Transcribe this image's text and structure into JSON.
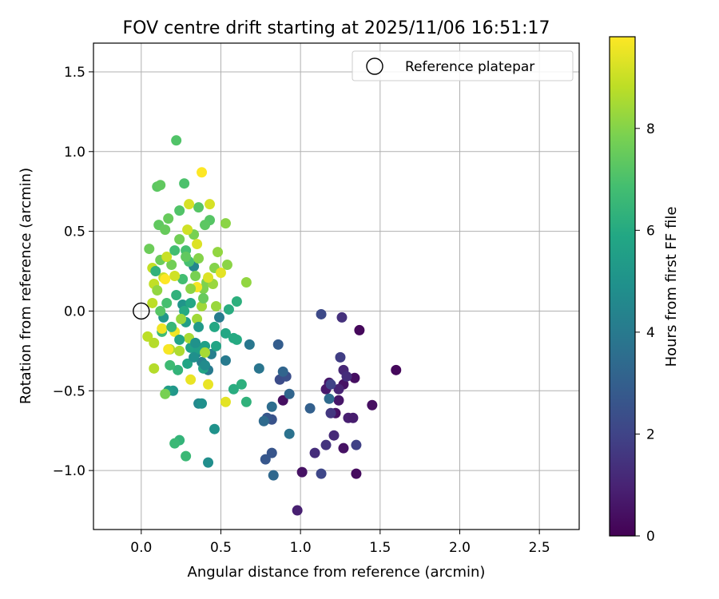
{
  "chart_data": {
    "type": "scatter",
    "title": "FOV centre drift starting at 2025/11/06 16:51:17",
    "xlabel": "Angular distance from reference (arcmin)",
    "ylabel": "Rotation from reference (arcmin)",
    "xlim": [
      -0.3,
      2.75
    ],
    "ylim": [
      -1.37,
      1.68
    ],
    "xticks": [
      0.0,
      0.5,
      1.0,
      1.5,
      2.0,
      2.5
    ],
    "xtick_labels": [
      "0.0",
      "0.5",
      "1.0",
      "1.5",
      "2.0",
      "2.5"
    ],
    "yticks": [
      -1.0,
      -0.5,
      0.0,
      0.5,
      1.0,
      1.5
    ],
    "ytick_labels": [
      "−1.0",
      "−0.5",
      "0.0",
      "0.5",
      "1.0",
      "1.5"
    ],
    "grid": true,
    "legend": {
      "placement": "top-right",
      "entries": [
        "Reference platepar"
      ]
    },
    "reference_point": {
      "x": 0.0,
      "y": 0.0,
      "marker": "open-circle"
    },
    "colorbar": {
      "label": "Hours from first FF file",
      "colormap": "viridis",
      "range": [
        0,
        9.8
      ],
      "ticks": [
        0,
        2,
        4,
        6,
        8
      ],
      "tick_labels": [
        "0",
        "2",
        "4",
        "6",
        "8"
      ]
    },
    "points": [
      {
        "x": 1.37,
        "y": -0.12,
        "h": 0.2
      },
      {
        "x": 1.6,
        "y": -0.37,
        "h": 0.2
      },
      {
        "x": 1.45,
        "y": -0.59,
        "h": 0.4
      },
      {
        "x": 1.35,
        "y": -1.02,
        "h": 0.3
      },
      {
        "x": 1.27,
        "y": -0.86,
        "h": 0.5
      },
      {
        "x": 1.22,
        "y": -0.64,
        "h": 0.5
      },
      {
        "x": 1.24,
        "y": -0.56,
        "h": 0.6
      },
      {
        "x": 1.27,
        "y": -0.46,
        "h": 0.5
      },
      {
        "x": 1.34,
        "y": -0.42,
        "h": 0.4
      },
      {
        "x": 1.16,
        "y": -0.49,
        "h": 0.7
      },
      {
        "x": 1.18,
        "y": -0.45,
        "h": 0.6
      },
      {
        "x": 1.01,
        "y": -1.01,
        "h": 0.5
      },
      {
        "x": 0.89,
        "y": -0.56,
        "h": 0.4
      },
      {
        "x": 0.98,
        "y": -1.25,
        "h": 0.9
      },
      {
        "x": 1.24,
        "y": -0.49,
        "h": 1.0
      },
      {
        "x": 1.3,
        "y": -0.67,
        "h": 0.9
      },
      {
        "x": 1.33,
        "y": -0.67,
        "h": 0.8
      },
      {
        "x": 1.27,
        "y": -0.37,
        "h": 1.1
      },
      {
        "x": 1.29,
        "y": -0.41,
        "h": 1.3
      },
      {
        "x": 1.21,
        "y": -0.78,
        "h": 1.2
      },
      {
        "x": 1.09,
        "y": -0.89,
        "h": 1.3
      },
      {
        "x": 1.16,
        "y": -0.84,
        "h": 1.5
      },
      {
        "x": 1.26,
        "y": -0.04,
        "h": 1.4
      },
      {
        "x": 1.19,
        "y": -0.64,
        "h": 1.6
      },
      {
        "x": 1.25,
        "y": -0.29,
        "h": 1.8
      },
      {
        "x": 1.35,
        "y": -0.84,
        "h": 1.9
      },
      {
        "x": 1.13,
        "y": -1.02,
        "h": 2.1
      },
      {
        "x": 1.19,
        "y": -0.46,
        "h": 2.0
      },
      {
        "x": 1.13,
        "y": -0.02,
        "h": 2.2
      },
      {
        "x": 0.87,
        "y": -0.43,
        "h": 2.3
      },
      {
        "x": 0.91,
        "y": -0.41,
        "h": 2.4
      },
      {
        "x": 0.82,
        "y": -0.89,
        "h": 2.6
      },
      {
        "x": 0.82,
        "y": -0.68,
        "h": 2.5
      },
      {
        "x": 0.79,
        "y": -0.67,
        "h": 2.7
      },
      {
        "x": 0.78,
        "y": -0.93,
        "h": 2.7
      },
      {
        "x": 0.86,
        "y": -0.21,
        "h": 2.9
      },
      {
        "x": 1.06,
        "y": -0.61,
        "h": 3.0
      },
      {
        "x": 0.93,
        "y": -0.52,
        "h": 3.2
      },
      {
        "x": 0.89,
        "y": -0.38,
        "h": 3.2
      },
      {
        "x": 0.83,
        "y": -1.03,
        "h": 3.3
      },
      {
        "x": 0.77,
        "y": -0.69,
        "h": 3.4
      },
      {
        "x": 0.82,
        "y": -0.6,
        "h": 3.5
      },
      {
        "x": 1.18,
        "y": -0.55,
        "h": 3.4
      },
      {
        "x": 0.93,
        "y": -0.77,
        "h": 3.7
      },
      {
        "x": 0.74,
        "y": -0.36,
        "h": 3.8
      },
      {
        "x": 0.68,
        "y": -0.21,
        "h": 3.9
      },
      {
        "x": 0.53,
        "y": -0.31,
        "h": 4.0
      },
      {
        "x": 0.49,
        "y": -0.04,
        "h": 4.1
      },
      {
        "x": 0.42,
        "y": -0.37,
        "h": 4.0
      },
      {
        "x": 0.44,
        "y": -0.27,
        "h": 4.2
      },
      {
        "x": 0.38,
        "y": -0.32,
        "h": 4.3
      },
      {
        "x": 0.35,
        "y": -0.26,
        "h": 4.4
      },
      {
        "x": 0.33,
        "y": 0.28,
        "h": 4.5
      },
      {
        "x": 0.36,
        "y": -0.58,
        "h": 4.6
      },
      {
        "x": 0.42,
        "y": -0.95,
        "h": 4.8
      },
      {
        "x": 0.38,
        "y": -0.58,
        "h": 4.9
      },
      {
        "x": 0.46,
        "y": -0.74,
        "h": 5.0
      },
      {
        "x": 0.26,
        "y": 0.04,
        "h": 5.1
      },
      {
        "x": 0.14,
        "y": -0.04,
        "h": 5.2
      },
      {
        "x": 0.2,
        "y": -0.5,
        "h": 5.2
      },
      {
        "x": 0.17,
        "y": -0.5,
        "h": 5.4
      },
      {
        "x": 0.28,
        "y": -0.07,
        "h": 5.5
      },
      {
        "x": 0.31,
        "y": -0.23,
        "h": 5.6
      },
      {
        "x": 0.36,
        "y": -0.24,
        "h": 5.5
      },
      {
        "x": 0.39,
        "y": -0.36,
        "h": 5.8
      },
      {
        "x": 0.4,
        "y": -0.22,
        "h": 5.6
      },
      {
        "x": 0.47,
        "y": -0.22,
        "h": 5.8
      },
      {
        "x": 0.46,
        "y": -0.1,
        "h": 5.9
      },
      {
        "x": 0.53,
        "y": -0.14,
        "h": 5.9
      },
      {
        "x": 0.58,
        "y": -0.17,
        "h": 6.0
      },
      {
        "x": 0.6,
        "y": -0.18,
        "h": 6.0
      },
      {
        "x": 0.55,
        "y": 0.01,
        "h": 6.1
      },
      {
        "x": 0.6,
        "y": 0.06,
        "h": 6.2
      },
      {
        "x": 0.58,
        "y": -0.49,
        "h": 6.1
      },
      {
        "x": 0.63,
        "y": -0.46,
        "h": 6.2
      },
      {
        "x": 0.66,
        "y": -0.57,
        "h": 6.3
      },
      {
        "x": 0.23,
        "y": -0.37,
        "h": 6.4
      },
      {
        "x": 0.24,
        "y": -0.81,
        "h": 6.4
      },
      {
        "x": 0.21,
        "y": -0.83,
        "h": 6.6
      },
      {
        "x": 0.28,
        "y": -0.91,
        "h": 6.6
      },
      {
        "x": 0.18,
        "y": -0.34,
        "h": 6.7
      },
      {
        "x": 0.13,
        "y": -0.13,
        "h": 6.7
      },
      {
        "x": 0.26,
        "y": 0.2,
        "h": 6.8
      },
      {
        "x": 0.3,
        "y": 0.31,
        "h": 6.9
      },
      {
        "x": 0.28,
        "y": 0.38,
        "h": 6.9
      },
      {
        "x": 0.27,
        "y": 0.8,
        "h": 7.0
      },
      {
        "x": 0.22,
        "y": 1.07,
        "h": 7.1
      },
      {
        "x": 0.24,
        "y": 0.63,
        "h": 7.1
      },
      {
        "x": 0.36,
        "y": 0.65,
        "h": 7.2
      },
      {
        "x": 0.43,
        "y": 0.57,
        "h": 7.2
      },
      {
        "x": 0.4,
        "y": 0.54,
        "h": 7.3
      },
      {
        "x": 0.1,
        "y": 0.78,
        "h": 7.3
      },
      {
        "x": 0.12,
        "y": 0.79,
        "h": 7.4
      },
      {
        "x": 0.11,
        "y": 0.54,
        "h": 7.4
      },
      {
        "x": 0.17,
        "y": 0.58,
        "h": 7.5
      },
      {
        "x": 0.15,
        "y": 0.51,
        "h": 7.5
      },
      {
        "x": 0.05,
        "y": 0.39,
        "h": 7.6
      },
      {
        "x": 0.12,
        "y": 0.32,
        "h": 7.6
      },
      {
        "x": 0.19,
        "y": 0.29,
        "h": 7.7
      },
      {
        "x": 0.24,
        "y": 0.45,
        "h": 7.7
      },
      {
        "x": 0.33,
        "y": 0.48,
        "h": 7.8
      },
      {
        "x": 0.34,
        "y": 0.22,
        "h": 7.8
      },
      {
        "x": 0.39,
        "y": 0.14,
        "h": 7.9
      },
      {
        "x": 0.41,
        "y": 0.18,
        "h": 7.9
      },
      {
        "x": 0.36,
        "y": 0.33,
        "h": 8.0
      },
      {
        "x": 0.46,
        "y": 0.27,
        "h": 8.0
      },
      {
        "x": 0.53,
        "y": 0.55,
        "h": 8.1
      },
      {
        "x": 0.54,
        "y": 0.29,
        "h": 8.1
      },
      {
        "x": 0.48,
        "y": 0.37,
        "h": 8.2
      },
      {
        "x": 0.66,
        "y": 0.18,
        "h": 8.2
      },
      {
        "x": 0.45,
        "y": 0.17,
        "h": 8.3
      },
      {
        "x": 0.47,
        "y": 0.03,
        "h": 8.3
      },
      {
        "x": 0.38,
        "y": 0.03,
        "h": 8.4
      },
      {
        "x": 0.35,
        "y": -0.05,
        "h": 8.4
      },
      {
        "x": 0.4,
        "y": -0.26,
        "h": 8.5
      },
      {
        "x": 0.3,
        "y": -0.17,
        "h": 8.5
      },
      {
        "x": 0.24,
        "y": -0.25,
        "h": 8.6
      },
      {
        "x": 0.18,
        "y": -0.24,
        "h": 8.6
      },
      {
        "x": 0.08,
        "y": -0.36,
        "h": 8.7
      },
      {
        "x": 0.08,
        "y": -0.2,
        "h": 8.7
      },
      {
        "x": 0.04,
        "y": -0.16,
        "h": 8.8
      },
      {
        "x": 0.07,
        "y": 0.05,
        "h": 8.8
      },
      {
        "x": 0.08,
        "y": 0.17,
        "h": 8.9
      },
      {
        "x": 0.07,
        "y": 0.27,
        "h": 8.9
      },
      {
        "x": 0.14,
        "y": 0.21,
        "h": 9.0
      },
      {
        "x": 0.16,
        "y": 0.34,
        "h": 9.0
      },
      {
        "x": 0.21,
        "y": 0.22,
        "h": 9.1
      },
      {
        "x": 0.29,
        "y": 0.51,
        "h": 9.1
      },
      {
        "x": 0.3,
        "y": 0.67,
        "h": 9.2
      },
      {
        "x": 0.43,
        "y": 0.67,
        "h": 9.2
      },
      {
        "x": 0.35,
        "y": 0.42,
        "h": 9.3
      },
      {
        "x": 0.42,
        "y": 0.21,
        "h": 9.3
      },
      {
        "x": 0.5,
        "y": 0.24,
        "h": 9.4
      },
      {
        "x": 0.53,
        "y": -0.57,
        "h": 9.4
      },
      {
        "x": 0.31,
        "y": -0.43,
        "h": 9.5
      },
      {
        "x": 0.42,
        "y": -0.46,
        "h": 9.5
      },
      {
        "x": 0.13,
        "y": -0.11,
        "h": 9.6
      },
      {
        "x": 0.21,
        "y": -0.13,
        "h": 9.6
      },
      {
        "x": 0.17,
        "y": -0.24,
        "h": 9.7
      },
      {
        "x": 0.38,
        "y": 0.87,
        "h": 9.8
      },
      {
        "x": 0.15,
        "y": 0.2,
        "h": 9.8
      },
      {
        "x": 0.35,
        "y": 0.15,
        "h": 9.7
      },
      {
        "x": 0.27,
        "y": 0.0,
        "h": 6.0
      },
      {
        "x": 0.22,
        "y": 0.1,
        "h": 6.3
      },
      {
        "x": 0.31,
        "y": 0.05,
        "h": 5.9
      },
      {
        "x": 0.36,
        "y": -0.1,
        "h": 5.3
      },
      {
        "x": 0.34,
        "y": -0.2,
        "h": 5.0
      },
      {
        "x": 0.24,
        "y": -0.18,
        "h": 5.7
      },
      {
        "x": 0.19,
        "y": -0.1,
        "h": 6.5
      },
      {
        "x": 0.16,
        "y": 0.05,
        "h": 6.9
      },
      {
        "x": 0.12,
        "y": 0.0,
        "h": 7.2
      },
      {
        "x": 0.29,
        "y": -0.33,
        "h": 5.8
      },
      {
        "x": 0.4,
        "y": -0.34,
        "h": 4.7
      },
      {
        "x": 0.39,
        "y": 0.08,
        "h": 7.5
      },
      {
        "x": 0.31,
        "y": 0.14,
        "h": 8.1
      },
      {
        "x": 0.25,
        "y": -0.05,
        "h": 8.3
      },
      {
        "x": 0.15,
        "y": -0.52,
        "h": 7.8
      },
      {
        "x": 0.28,
        "y": 0.34,
        "h": 7.4
      },
      {
        "x": 0.09,
        "y": 0.25,
        "h": 6.3
      },
      {
        "x": 0.21,
        "y": 0.38,
        "h": 6.8
      },
      {
        "x": 0.1,
        "y": 0.13,
        "h": 8.2
      },
      {
        "x": 0.33,
        "y": -0.29,
        "h": 4.9
      }
    ]
  }
}
